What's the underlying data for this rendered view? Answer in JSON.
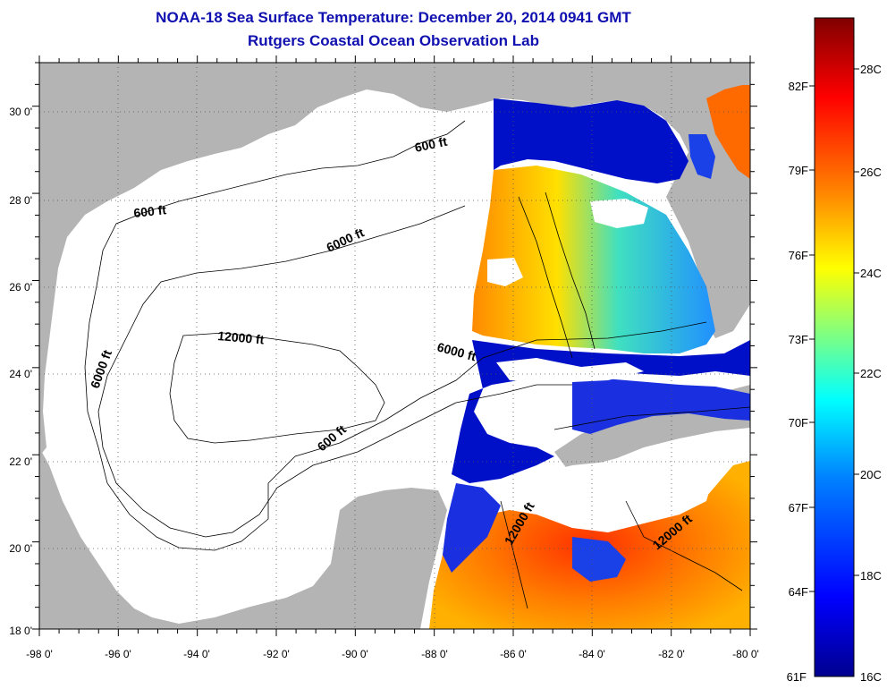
{
  "title": {
    "line1": "NOAA-18 Sea Surface Temperature:  December 20, 2014 0941 GMT",
    "line2": "Rutgers Coastal Ocean Observation Lab"
  },
  "map": {
    "lon_range": [
      -98,
      -80
    ],
    "lat_range": [
      18,
      31
    ],
    "lon_ticks": [
      "-98 0'",
      "-96 0'",
      "-94 0'",
      "-92 0'",
      "-90 0'",
      "-88 0'",
      "-86 0'",
      "-84 0'",
      "-82 0'",
      "-80 0'"
    ],
    "lat_ticks": [
      "30 0'",
      "28 0'",
      "26 0'",
      "24 0'",
      "22 0'",
      "20 0'",
      "18 0'"
    ],
    "grid": "dotted",
    "land_color": "#b4b4b4",
    "water_no_data_color": "#ffffff",
    "contour_labels": [
      "600 ft",
      "600 ft",
      "6000 ft",
      "12000 ft",
      "6000 ft",
      "6000 ft",
      "600 ft",
      "12000 ft",
      "12000 ft"
    ]
  },
  "colorbar": {
    "fahrenheit_labels": [
      "82F",
      "79F",
      "76F",
      "73F",
      "70F",
      "67F",
      "64F",
      "61F"
    ],
    "celsius_labels": [
      "28C",
      "26C",
      "24C",
      "22C",
      "20C",
      "18C",
      "16C"
    ],
    "min_label_c": "16C",
    "colors": [
      "#00008f",
      "#0000ff",
      "#0080ff",
      "#00ffff",
      "#80ff80",
      "#ffff00",
      "#ff8000",
      "#ff0000",
      "#800000"
    ]
  }
}
